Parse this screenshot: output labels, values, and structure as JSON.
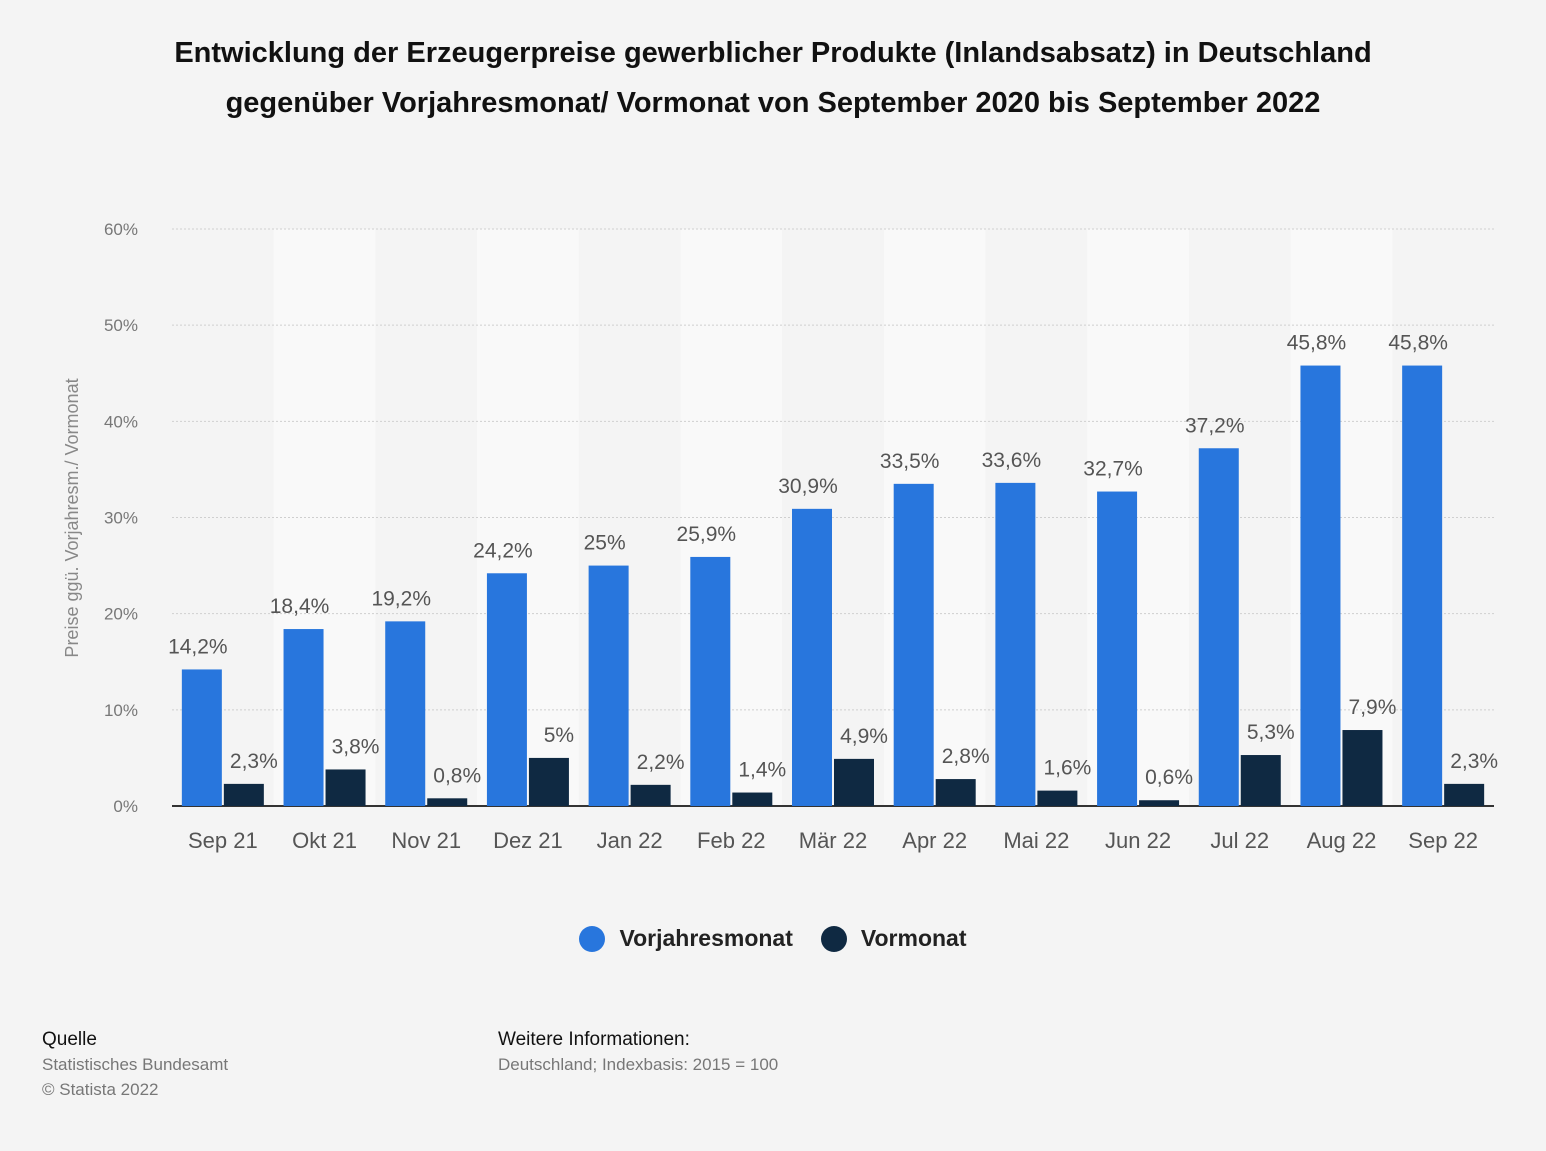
{
  "title": "Entwicklung der Erzeugerpreise gewerblicher Produkte (Inlandsabsatz) in Deutschland gegenüber Vorjahresmonat/ Vormonat von September 2020 bis September 2022",
  "chart_data": {
    "type": "bar",
    "title": "Entwicklung der Erzeugerpreise gewerblicher Produkte (Inlandsabsatz) in Deutschland gegenüber Vorjahresmonat/ Vormonat von September 2020 bis September 2022",
    "xlabel": "",
    "ylabel": "Preise ggü. Vorjahresm./ Vormonat",
    "ylim": [
      0,
      60
    ],
    "yticks": [
      "0%",
      "10%",
      "20%",
      "30%",
      "40%",
      "50%",
      "60%"
    ],
    "categories": [
      "Sep 21",
      "Okt 21",
      "Nov 21",
      "Dez 21",
      "Jan 22",
      "Feb 22",
      "Mär 22",
      "Apr 22",
      "Mai 22",
      "Jun 22",
      "Jul 22",
      "Aug 22",
      "Sep 22"
    ],
    "series": [
      {
        "name": "Vorjahresmonat",
        "color": "#2876dd",
        "values": [
          14.2,
          18.4,
          19.2,
          24.2,
          25,
          25.9,
          30.9,
          33.5,
          33.6,
          32.7,
          37.2,
          45.8,
          45.8
        ],
        "labels": [
          "14,2%",
          "18,4%",
          "19,2%",
          "24,2%",
          "25%",
          "25,9%",
          "30,9%",
          "33,5%",
          "33,6%",
          "32,7%",
          "37,2%",
          "45,8%",
          "45,8%"
        ]
      },
      {
        "name": "Vormonat",
        "color": "#0f2942",
        "values": [
          2.3,
          3.8,
          0.8,
          5,
          2.2,
          1.4,
          4.9,
          2.8,
          1.6,
          0.6,
          5.3,
          7.9,
          2.3
        ],
        "labels": [
          "2,3%",
          "3,8%",
          "0,8%",
          "5%",
          "2,2%",
          "1,4%",
          "4,9%",
          "2,8%",
          "1,6%",
          "0,6%",
          "5,3%",
          "7,9%",
          "2,3%"
        ]
      }
    ],
    "grid": true,
    "legend_position": "bottom"
  },
  "footer": {
    "source_head": "Quelle",
    "source_lines": [
      "Statistisches Bundesamt",
      "© Statista 2022"
    ],
    "info_head": "Weitere Informationen:",
    "info_text": "Deutschland; Indexbasis: 2015 = 100"
  }
}
